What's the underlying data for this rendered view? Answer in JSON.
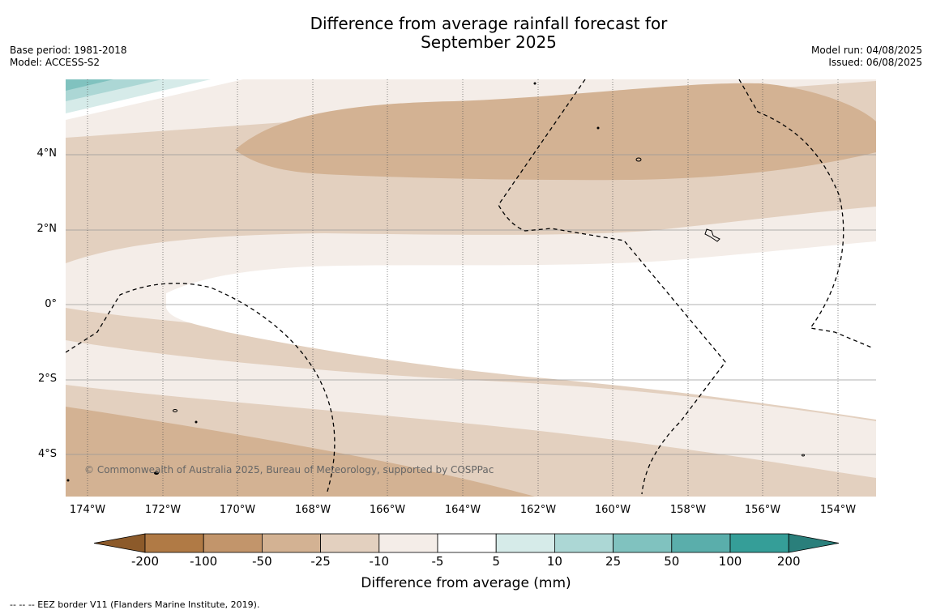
{
  "title_line1": "Difference from average rainfall forecast for",
  "title_line2": "September 2025",
  "base_period": "Base period: 1981-2018",
  "model": "Model: ACCESS-S2",
  "model_run": "Model run: 04/08/2025",
  "issued": "Issued: 06/08/2025",
  "copyright": "© Commonwealth of Australia 2025, Bureau of Meteorology, supported by COSPPac",
  "footer": "--  --  -- EEZ border V11 (Flanders Marine Institute, 2019).",
  "lat_labels": [
    "4°N",
    "2°N",
    "0°",
    "2°S",
    "4°S"
  ],
  "lon_labels": [
    "174°W",
    "172°W",
    "170°W",
    "168°W",
    "166°W",
    "164°W",
    "162°W",
    "160°W",
    "158°W",
    "156°W",
    "154°W"
  ],
  "colorbar": {
    "label": "Difference from average (mm)",
    "ticks": [
      "-200",
      "-100",
      "-50",
      "-25",
      "-10",
      "-5",
      "5",
      "10",
      "25",
      "50",
      "100",
      "200"
    ],
    "colors": [
      "#8c5a2a",
      "#b07a45",
      "#c2956b",
      "#d3b293",
      "#e3d0bf",
      "#f4ede8",
      "#ffffff",
      "#d6ebe9",
      "#acd7d5",
      "#80c2bf",
      "#5aaeab",
      "#359e98",
      "#2a7f7b"
    ]
  }
}
